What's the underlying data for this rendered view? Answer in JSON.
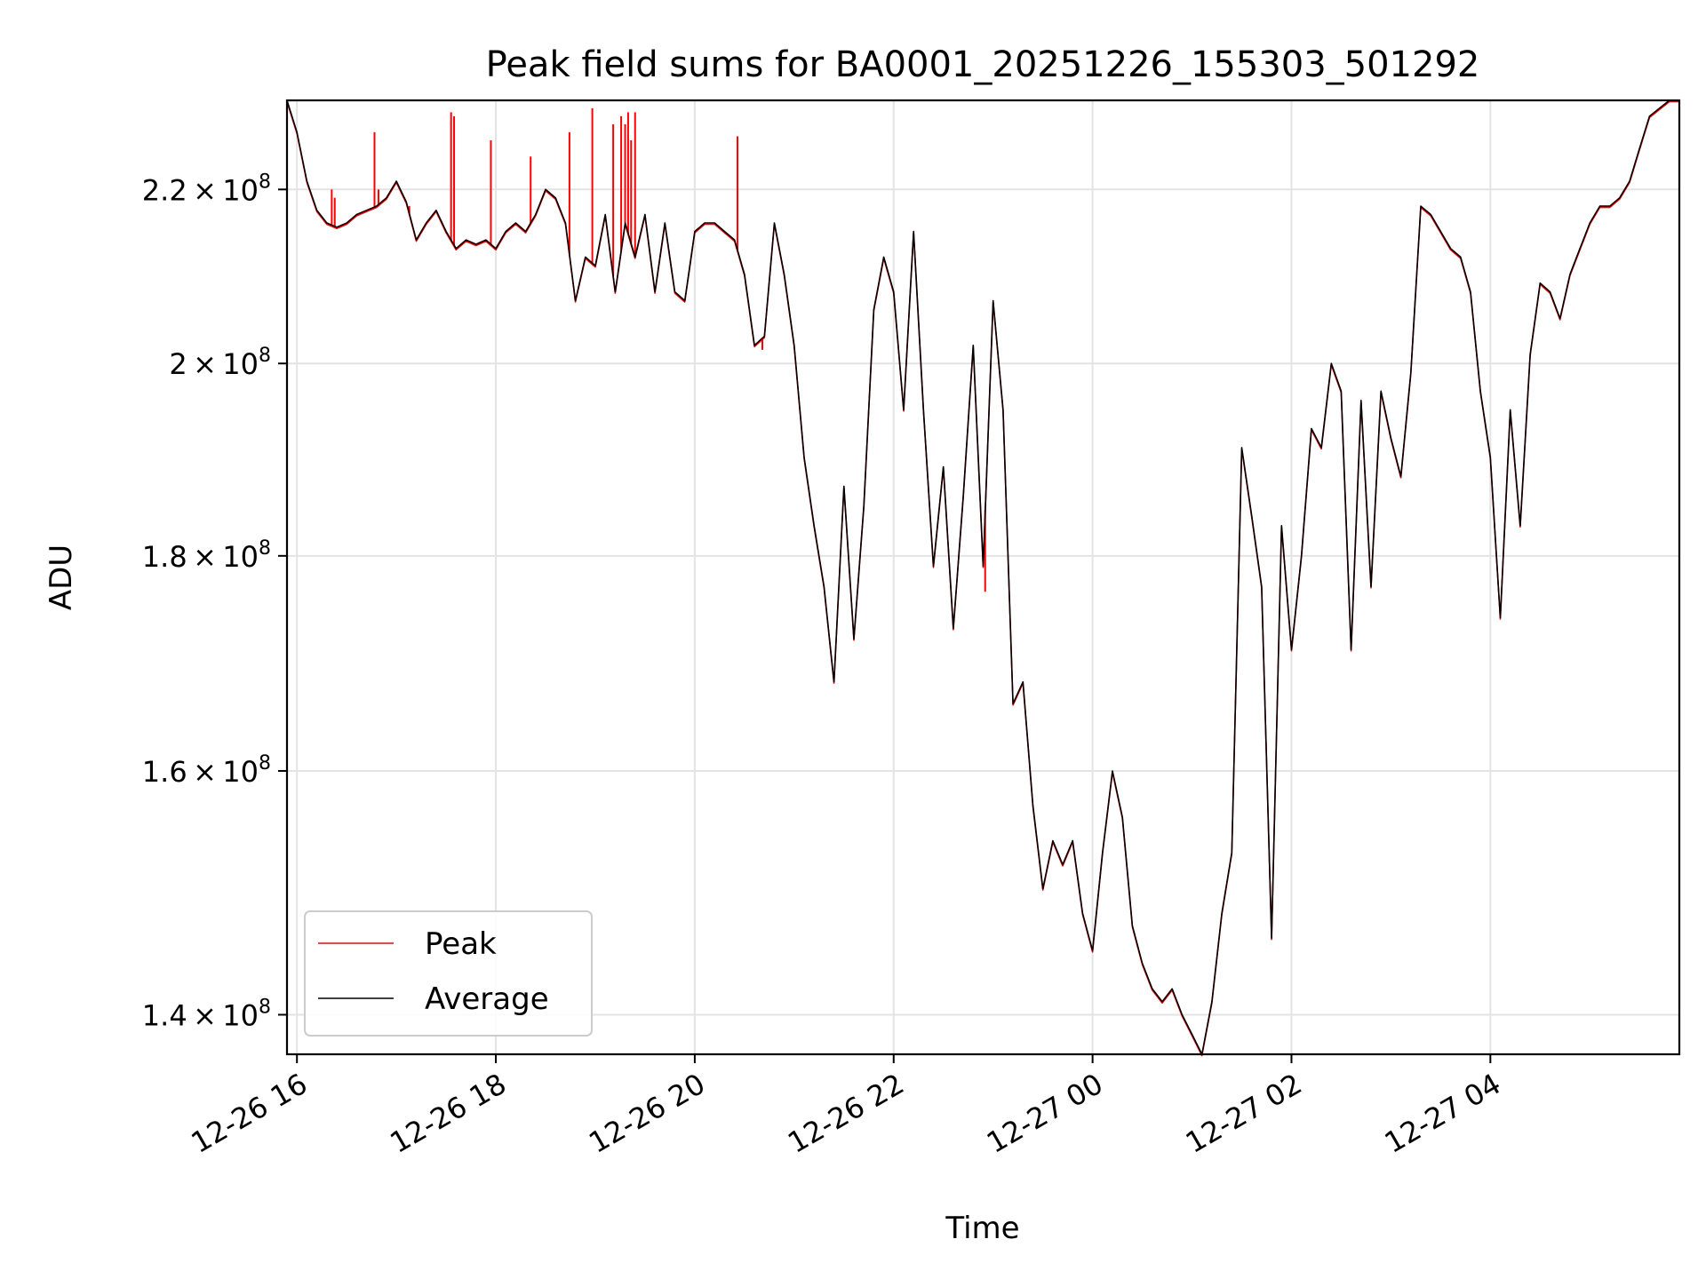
{
  "chart_data": {
    "type": "line",
    "title": "Peak field sums for BA0001_20251226_155303_501292",
    "xlabel": "Time",
    "ylabel": "ADU",
    "x_unit": "hours since 2025-12-26 00:00",
    "xlim": [
      15.9,
      29.9
    ],
    "ylim": [
      137000000.0,
      231000000.0
    ],
    "grid": true,
    "legend_position": "lower-left",
    "x_ticks": [
      {
        "value": 16,
        "label": "12-26 16"
      },
      {
        "value": 18,
        "label": "12-26 18"
      },
      {
        "value": 20,
        "label": "12-26 20"
      },
      {
        "value": 22,
        "label": "12-26 22"
      },
      {
        "value": 24,
        "label": "12-27 00"
      },
      {
        "value": 26,
        "label": "12-27 02"
      },
      {
        "value": 28,
        "label": "12-27 04"
      }
    ],
    "y_ticks": [
      {
        "value": 140000000.0,
        "base": "1.4",
        "exp": "8"
      },
      {
        "value": 160000000.0,
        "base": "1.6",
        "exp": "8"
      },
      {
        "value": 180000000.0,
        "base": "1.8",
        "exp": "8"
      },
      {
        "value": 200000000.0,
        "base": "2",
        "exp": "8"
      },
      {
        "value": 220000000.0,
        "base": "2.2",
        "exp": "8"
      }
    ],
    "tick_times_sign": "×",
    "tick_base10": "10",
    "series": [
      {
        "name": "Average",
        "color": "#000000",
        "x": [
          15.9,
          16.0,
          16.1,
          16.2,
          16.3,
          16.4,
          16.5,
          16.6,
          16.7,
          16.8,
          16.9,
          17.0,
          17.1,
          17.2,
          17.3,
          17.4,
          17.5,
          17.6,
          17.7,
          17.8,
          17.9,
          18.0,
          18.1,
          18.2,
          18.3,
          18.4,
          18.5,
          18.6,
          18.7,
          18.8,
          18.9,
          19.0,
          19.1,
          19.2,
          19.3,
          19.4,
          19.5,
          19.6,
          19.7,
          19.8,
          19.9,
          20.0,
          20.1,
          20.2,
          20.3,
          20.4,
          20.5,
          20.6,
          20.7,
          20.8,
          20.9,
          21.0,
          21.1,
          21.2,
          21.3,
          21.4,
          21.5,
          21.6,
          21.7,
          21.8,
          21.9,
          22.0,
          22.1,
          22.2,
          22.3,
          22.4,
          22.5,
          22.6,
          22.7,
          22.8,
          22.9,
          23.0,
          23.1,
          23.2,
          23.3,
          23.4,
          23.5,
          23.6,
          23.7,
          23.8,
          23.9,
          24.0,
          24.1,
          24.2,
          24.3,
          24.4,
          24.5,
          24.6,
          24.7,
          24.8,
          24.9,
          25.0,
          25.1,
          25.2,
          25.3,
          25.4,
          25.5,
          25.6,
          25.7,
          25.8,
          25.9,
          26.0,
          26.1,
          26.2,
          26.3,
          26.4,
          26.5,
          26.6,
          26.7,
          26.8,
          26.9,
          27.0,
          27.1,
          27.2,
          27.3,
          27.4,
          27.5,
          27.6,
          27.7,
          27.8,
          27.9,
          28.0,
          28.1,
          28.2,
          28.3,
          28.4,
          28.5,
          28.6,
          28.7,
          28.8,
          28.9,
          29.0,
          29.1,
          29.2,
          29.3,
          29.4,
          29.5,
          29.6,
          29.7,
          29.8,
          29.9
        ],
        "values": [
          231000000.0,
          227000000.0,
          221000000.0,
          217500000.0,
          216000000.0,
          215500000.0,
          216000000.0,
          217000000.0,
          217500000.0,
          218000000.0,
          219000000.0,
          221000000.0,
          218500000.0,
          214000000.0,
          216000000.0,
          217500000.0,
          215000000.0,
          213000000.0,
          214000000.0,
          213500000.0,
          214000000.0,
          213000000.0,
          215000000.0,
          216000000.0,
          215000000.0,
          217000000.0,
          220000000.0,
          219000000.0,
          216000000.0,
          207000000.0,
          212000000.0,
          211000000.0,
          217000000.0,
          208000000.0,
          216000000.0,
          212000000.0,
          217000000.0,
          208000000.0,
          216000000.0,
          208000000.0,
          207000000.0,
          215000000.0,
          216000000.0,
          216000000.0,
          215000000.0,
          214000000.0,
          210000000.0,
          202000000.0,
          203000000.0,
          216000000.0,
          210000000.0,
          202000000.0,
          190000000.0,
          183000000.0,
          177000000.0,
          168000000.0,
          187000000.0,
          172000000.0,
          185000000.0,
          206000000.0,
          212000000.0,
          208000000.0,
          195000000.0,
          215000000.0,
          195000000.0,
          179000000.0,
          189000000.0,
          173000000.0,
          186000000.0,
          202000000.0,
          179000000.0,
          207000000.0,
          195000000.0,
          166000000.0,
          168000000.0,
          157000000.0,
          150000000.0,
          154000000.0,
          152000000.0,
          154000000.0,
          148000000.0,
          145000000.0,
          153000000.0,
          160000000.0,
          156000000.0,
          147000000.0,
          144000000.0,
          142000000.0,
          141000000.0,
          142000000.0,
          140000000.0,
          138500000.0,
          137000000.0,
          141000000.0,
          148000000.0,
          153000000.0,
          191000000.0,
          184000000.0,
          177000000.0,
          146000000.0,
          183000000.0,
          171000000.0,
          180000000.0,
          193000000.0,
          191000000.0,
          200000000.0,
          197000000.0,
          171000000.0,
          196000000.0,
          177000000.0,
          197000000.0,
          192000000.0,
          188000000.0,
          199000000.0,
          218000000.0,
          217000000.0,
          215000000.0,
          213000000.0,
          212000000.0,
          208000000.0,
          197000000.0,
          190000000.0,
          174000000.0,
          195000000.0,
          183000000.0,
          201000000.0,
          209000000.0,
          208000000.0,
          205000000.0,
          210000000.0,
          213000000.0,
          216000000.0,
          218000000.0,
          218000000.0,
          219000000.0,
          221000000.0,
          225000000.0,
          229000000.0,
          230000000.0,
          231000000.0,
          231000000.0
        ]
      },
      {
        "name": "Peak",
        "color": "#ff0000",
        "x": [
          16.35,
          16.38,
          16.78,
          16.82,
          17.13,
          17.55,
          17.58,
          17.95,
          18.35,
          18.74,
          18.97,
          19.18,
          19.26,
          19.3,
          19.33,
          19.36,
          19.4,
          20.43,
          20.68,
          22.92
        ],
        "values": [
          220000000.0,
          219000000.0,
          227000000.0,
          220000000.0,
          218000000.0,
          229500000.0,
          229000000.0,
          226000000.0,
          224000000.0,
          227000000.0,
          230000000.0,
          228000000.0,
          229000000.0,
          228000000.0,
          229500000.0,
          226000000.0,
          229500000.0,
          226500000.0,
          201500000.0,
          176500000.0
        ]
      }
    ]
  },
  "legend": [
    {
      "label": "Peak",
      "color": "#ff0000"
    },
    {
      "label": "Average",
      "color": "#000000"
    }
  ]
}
